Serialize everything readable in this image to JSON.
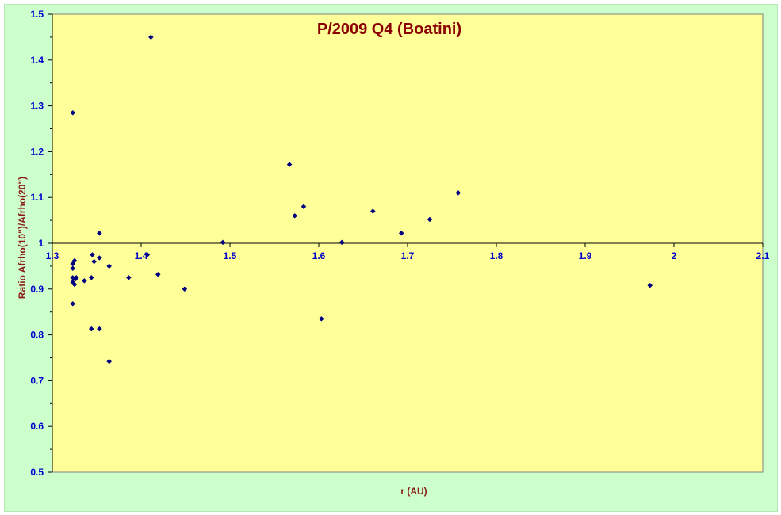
{
  "chart_data": {
    "type": "scatter",
    "title": "P/2009 Q4 (Boatini)",
    "xlabel": "r (AU)",
    "ylabel": "Ratio Afrho(10\")/Afrho(20\")",
    "xlim": [
      1.3,
      2.1
    ],
    "ylim": [
      0.5,
      1.5
    ],
    "x_ticks": [
      "1.3",
      "1.4",
      "1.5",
      "1.6",
      "1.7",
      "1.8",
      "1.9",
      "2",
      "2.1"
    ],
    "y_ticks": [
      "0.5",
      "0.6",
      "0.7",
      "0.8",
      "0.9",
      "1",
      "1.1",
      "1.2",
      "1.3",
      "1.4",
      "1.5"
    ],
    "x_axis_at_y": 1.0,
    "grid": false,
    "legend": "none",
    "colors": {
      "plot_background": "#ffff99",
      "chart_background": "#ccffcc",
      "marker": "#000080",
      "tick_labels": "#0000cc",
      "titles": "#8b1a1a"
    },
    "series": [
      {
        "points": [
          [
            1.323,
            1.285
          ],
          [
            1.323,
            0.955
          ],
          [
            1.323,
            0.945
          ],
          [
            1.323,
            0.925
          ],
          [
            1.323,
            0.915
          ],
          [
            1.323,
            0.868
          ],
          [
            1.325,
            0.962
          ],
          [
            1.325,
            0.91
          ],
          [
            1.326,
            0.922
          ],
          [
            1.327,
            0.925
          ],
          [
            1.336,
            0.918
          ],
          [
            1.344,
            0.925
          ],
          [
            1.345,
            0.975
          ],
          [
            1.344,
            0.813
          ],
          [
            1.347,
            0.96
          ],
          [
            1.353,
            1.022
          ],
          [
            1.353,
            0.968
          ],
          [
            1.353,
            0.813
          ],
          [
            1.364,
            0.95
          ],
          [
            1.364,
            0.742
          ],
          [
            1.386,
            0.925
          ],
          [
            1.407,
            0.975
          ],
          [
            1.411,
            1.45
          ],
          [
            1.419,
            0.932
          ],
          [
            1.449,
            0.9
          ],
          [
            1.492,
            1.002
          ],
          [
            1.567,
            1.172
          ],
          [
            1.573,
            1.06
          ],
          [
            1.583,
            1.08
          ],
          [
            1.603,
            0.835
          ],
          [
            1.626,
            1.002
          ],
          [
            1.661,
            1.07
          ],
          [
            1.693,
            1.022
          ],
          [
            1.725,
            1.052
          ],
          [
            1.757,
            1.11
          ],
          [
            1.973,
            0.908
          ]
        ]
      }
    ]
  }
}
